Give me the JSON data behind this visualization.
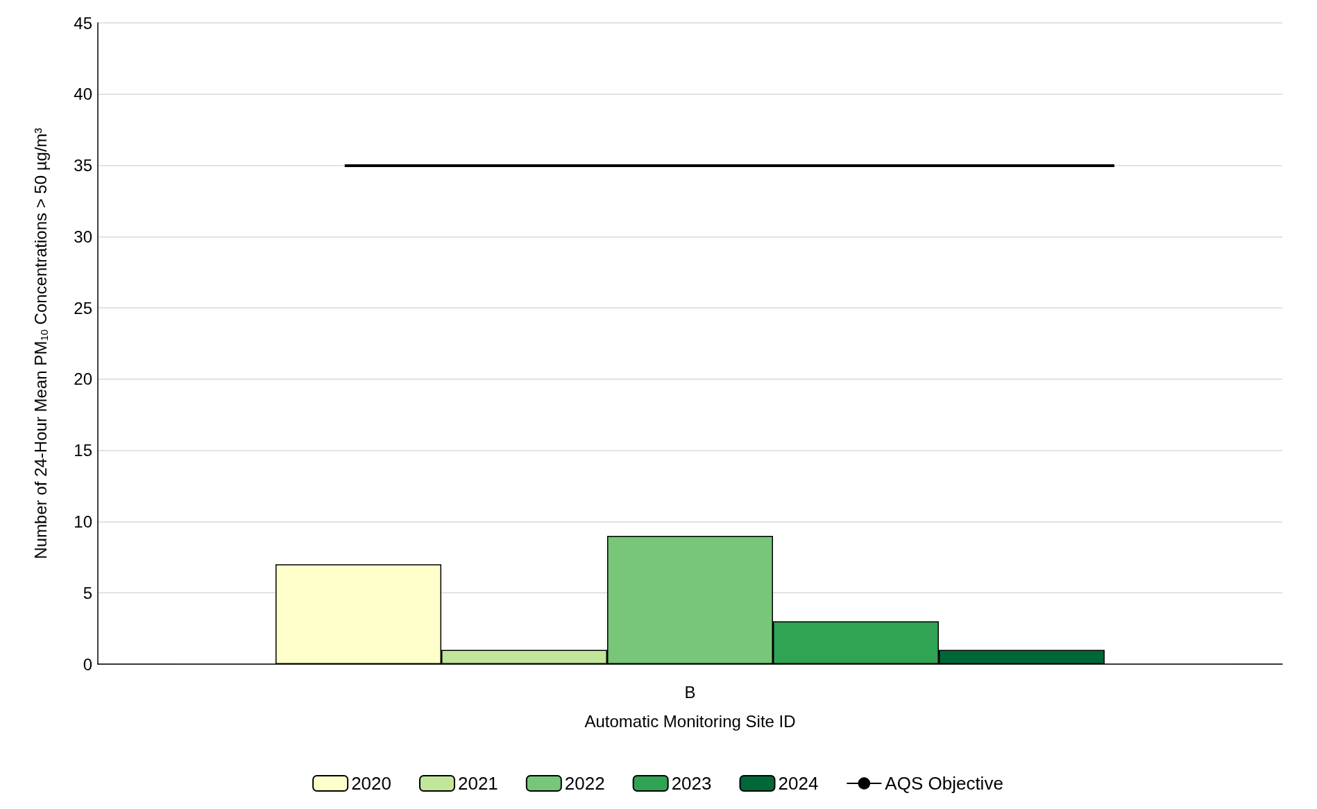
{
  "chart_data": {
    "type": "bar",
    "xlabel": "Automatic Monitoring Site ID",
    "ylabel": "Number of 24-Hour Mean PM$_{10}$ Concentrations > 50 µg/m³",
    "categories": [
      "B"
    ],
    "series": [
      {
        "name": "2020",
        "color": "#ffffcc",
        "values": [
          7
        ]
      },
      {
        "name": "2021",
        "color": "#c2e699",
        "values": [
          1
        ]
      },
      {
        "name": "2022",
        "color": "#78c679",
        "values": [
          9
        ]
      },
      {
        "name": "2023",
        "color": "#31a354",
        "values": [
          3
        ]
      },
      {
        "name": "2024",
        "color": "#006837",
        "values": [
          1
        ]
      }
    ],
    "ref_lines": [
      {
        "axis": "y",
        "value": 35,
        "label": "AQS Objective",
        "color": "#000000"
      }
    ],
    "ylim": [
      0,
      45
    ],
    "yticks": [
      0,
      5,
      10,
      15,
      20,
      25,
      30,
      35,
      40,
      45
    ],
    "grid": "y",
    "legend": "bottom"
  }
}
